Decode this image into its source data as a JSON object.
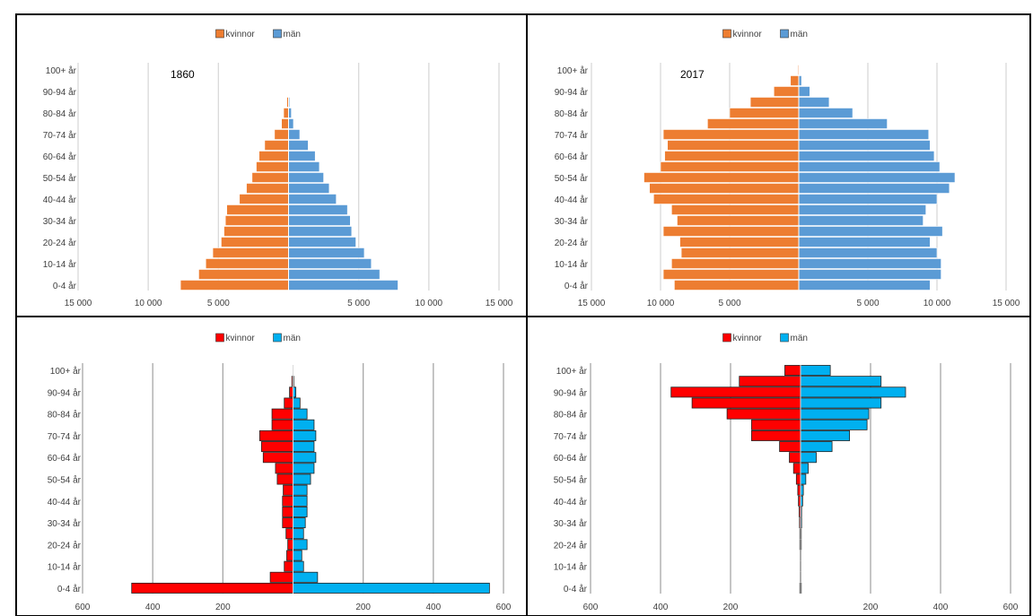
{
  "colors": {
    "women_top": "#ed7d31",
    "men_top": "#5b9bd5",
    "women_bottom": "#ff0000",
    "men_bottom": "#00b0f0",
    "grid": "#d9d9d9",
    "grid_bottom": "#a6a6a6",
    "border": "#000000",
    "text": "#404040"
  },
  "chart_data": [
    {
      "type": "bar",
      "orientation": "horizontal-pyramid",
      "title": "1860",
      "legend": [
        "kvinnor",
        "män"
      ],
      "legend_position": "top",
      "categories": [
        "0-4 år",
        "5-9 år",
        "10-14 år",
        "15-19 år",
        "20-24 år",
        "25-29 år",
        "30-34 år",
        "35-39 år",
        "40-44 år",
        "45-49 år",
        "50-54 år",
        "55-59 år",
        "60-64 år",
        "65-69 år",
        "70-74 år",
        "75-79 år",
        "80-84 år",
        "85-89 år",
        "90-94 år",
        "95-99 år",
        "100+ år"
      ],
      "category_labels": [
        "0-4 år",
        "",
        "10-14 år",
        "",
        "20-24 år",
        "",
        "30-34 år",
        "",
        "40-44 år",
        "",
        "50-54 år",
        "",
        "60-64 år",
        "",
        "70-74 år",
        "",
        "80-84 år",
        "",
        "90-94 år",
        "",
        "100+ år"
      ],
      "series": [
        {
          "name": "kvinnor",
          "values": [
            7700,
            6400,
            5900,
            5400,
            4800,
            4600,
            4500,
            4400,
            3500,
            3000,
            2600,
            2300,
            2100,
            1700,
            1000,
            500,
            350,
            120,
            30,
            5,
            1
          ]
        },
        {
          "name": "män",
          "values": [
            7800,
            6500,
            5900,
            5400,
            4800,
            4500,
            4400,
            4200,
            3400,
            2900,
            2500,
            2200,
            1900,
            1400,
            800,
            350,
            200,
            80,
            20,
            3,
            1
          ]
        }
      ],
      "xlim": [
        -15000,
        15000
      ],
      "xticks": [
        -15000,
        -10000,
        -5000,
        0,
        5000,
        10000,
        15000
      ],
      "xtick_labels": [
        "15 000",
        "10 000",
        "5 000",
        "",
        "5 000",
        "10 000",
        "15 000"
      ],
      "grid": true
    },
    {
      "type": "bar",
      "orientation": "horizontal-pyramid",
      "title": "2017",
      "legend": [
        "kvinnor",
        "män"
      ],
      "legend_position": "top",
      "categories": [
        "0-4 år",
        "5-9 år",
        "10-14 år",
        "15-19 år",
        "20-24 år",
        "25-29 år",
        "30-34 år",
        "35-39 år",
        "40-44 år",
        "45-49 år",
        "50-54 år",
        "55-59 år",
        "60-64 år",
        "65-69 år",
        "70-74 år",
        "75-79 år",
        "80-84 år",
        "85-89 år",
        "90-94 år",
        "95-99 år",
        "100+ år"
      ],
      "category_labels": [
        "0-4 år",
        "",
        "10-14 år",
        "",
        "20-24 år",
        "",
        "30-34 år",
        "",
        "40-44 år",
        "",
        "50-54 år",
        "",
        "60-64 år",
        "",
        "70-74 år",
        "",
        "80-84 år",
        "",
        "90-94 år",
        "",
        "100+ år"
      ],
      "series": [
        {
          "name": "kvinnor",
          "values": [
            9000,
            9800,
            9200,
            8500,
            8600,
            9800,
            8800,
            9200,
            10500,
            10800,
            11200,
            10000,
            9700,
            9500,
            9800,
            6600,
            5000,
            3500,
            1800,
            600,
            70
          ]
        },
        {
          "name": "män",
          "values": [
            9500,
            10300,
            10300,
            10000,
            9500,
            10400,
            9000,
            9200,
            10000,
            10900,
            11300,
            10200,
            9800,
            9500,
            9400,
            6400,
            3900,
            2200,
            800,
            200,
            15
          ]
        }
      ],
      "xlim": [
        -15000,
        15000
      ],
      "xticks": [
        -15000,
        -10000,
        -5000,
        0,
        5000,
        10000,
        15000
      ],
      "xtick_labels": [
        "15 000",
        "10 000",
        "5 000",
        "",
        "5 000",
        "10 000",
        "15 000"
      ],
      "grid": true
    },
    {
      "type": "bar",
      "orientation": "horizontal-pyramid",
      "title": "",
      "legend": [
        "kvinnor",
        "män"
      ],
      "legend_position": "top",
      "categories": [
        "0-4 år",
        "5-9 år",
        "10-14 år",
        "15-19 år",
        "20-24 år",
        "25-29 år",
        "30-34 år",
        "35-39 år",
        "40-44 år",
        "45-49 år",
        "50-54 år",
        "55-59 år",
        "60-64 år",
        "65-69 år",
        "70-74 år",
        "75-79 år",
        "80-84 år",
        "85-89 år",
        "90-94 år",
        "95-99 år",
        "100+ år"
      ],
      "category_labels": [
        "0-4 år",
        "",
        "10-14 år",
        "",
        "20-24 år",
        "",
        "30-34 år",
        "",
        "40-44 år",
        "",
        "50-54 år",
        "",
        "60-64 år",
        "",
        "70-74 år",
        "",
        "80-84 år",
        "",
        "90-94 år",
        "",
        "100+ år"
      ],
      "series": [
        {
          "name": "kvinnor",
          "values": [
            460,
            65,
            25,
            18,
            15,
            20,
            30,
            30,
            30,
            28,
            45,
            50,
            85,
            90,
            95,
            60,
            60,
            25,
            10,
            3,
            0
          ]
        },
        {
          "name": "män",
          "values": [
            560,
            70,
            30,
            25,
            40,
            30,
            35,
            40,
            40,
            40,
            50,
            60,
            65,
            60,
            65,
            60,
            40,
            20,
            8,
            2,
            0
          ]
        }
      ],
      "xlim": [
        -600,
        600
      ],
      "xticks": [
        -600,
        -400,
        -200,
        0,
        200,
        400,
        600
      ],
      "xtick_labels": [
        "600",
        "400",
        "200",
        "",
        "200",
        "400",
        "600"
      ],
      "grid": true
    },
    {
      "type": "bar",
      "orientation": "horizontal-pyramid",
      "title": "",
      "legend": [
        "kvinnor",
        "män"
      ],
      "legend_position": "top",
      "categories": [
        "0-4 år",
        "5-9 år",
        "10-14 år",
        "15-19 år",
        "20-24 år",
        "25-29 år",
        "30-34 år",
        "35-39 år",
        "40-44 år",
        "45-49 år",
        "50-54 år",
        "55-59 år",
        "60-64 år",
        "65-69 år",
        "70-74 år",
        "75-79 år",
        "80-84 år",
        "85-89 år",
        "90-94 år",
        "95-99 år",
        "100+ år"
      ],
      "category_labels": [
        "0-4 år",
        "",
        "10-14 år",
        "",
        "20-24 år",
        "",
        "30-34 år",
        "",
        "40-44 år",
        "",
        "50-54 år",
        "",
        "60-64 år",
        "",
        "70-74 år",
        "",
        "80-84 år",
        "",
        "90-94 år",
        "",
        "100+ år"
      ],
      "series": [
        {
          "name": "kvinnor",
          "values": [
            2,
            1,
            1,
            1,
            2,
            2,
            3,
            4,
            6,
            8,
            12,
            20,
            32,
            60,
            140,
            140,
            210,
            310,
            370,
            175,
            45
          ]
        },
        {
          "name": "män",
          "values": [
            2,
            1,
            1,
            1,
            2,
            2,
            3,
            3,
            6,
            8,
            15,
            22,
            45,
            90,
            140,
            190,
            195,
            230,
            300,
            230,
            85
          ]
        }
      ],
      "xlim": [
        -600,
        600
      ],
      "xticks": [
        -600,
        -400,
        -200,
        0,
        200,
        400,
        600
      ],
      "xtick_labels": [
        "600",
        "400",
        "200",
        "",
        "200",
        "400",
        "600"
      ],
      "grid": true
    }
  ]
}
